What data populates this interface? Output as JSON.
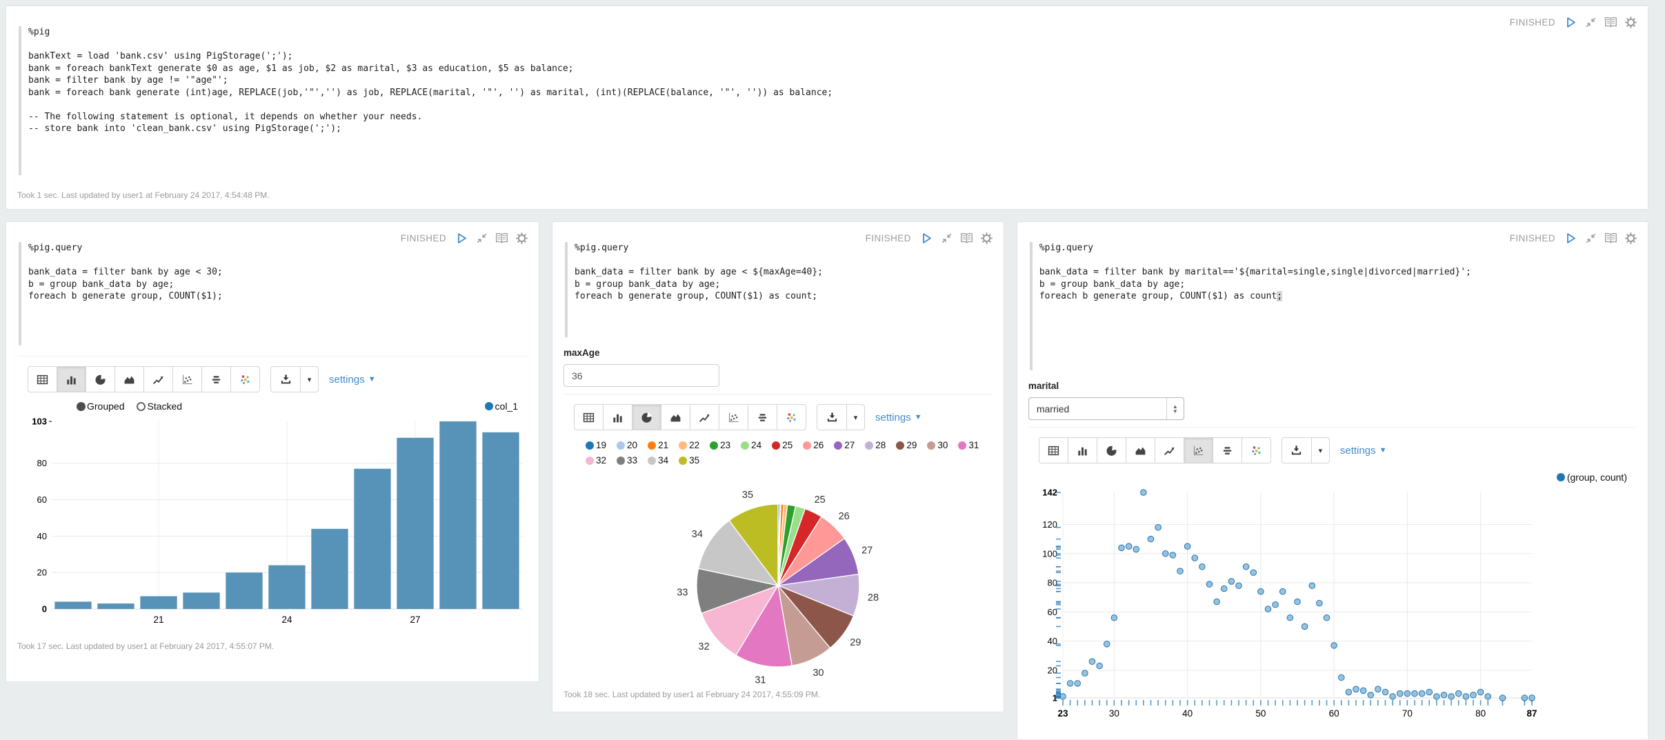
{
  "toolbar": {
    "settings_label": "settings",
    "viz_types": [
      "table",
      "bar-chart",
      "pie-chart",
      "area-chart",
      "line-chart",
      "scatter-chart",
      "stacked-chart",
      "bubble-chart"
    ],
    "header_icons": [
      "play-icon",
      "compress-icon",
      "book-icon",
      "gear-icon"
    ],
    "extra_icons": [
      "download-icon",
      "caret-down-icon"
    ]
  },
  "paragraphs": [
    {
      "status": "FINISHED",
      "code": "%pig\n\nbankText = load 'bank.csv' using PigStorage(';');\nbank = foreach bankText generate $0 as age, $1 as job, $2 as marital, $3 as education, $5 as balance;\nbank = filter bank by age != '\"age\"';\nbank = foreach bank generate (int)age, REPLACE(job,'\"','') as job, REPLACE(marital, '\"', '') as marital, (int)(REPLACE(balance, '\"', '')) as balance;\n\n-- The following statement is optional, it depends on whether your needs.\n-- store bank into 'clean_bank.csv' using PigStorage(';');",
      "footer": "Took 1 sec. Last updated by user1 at February 24 2017, 4:54:48 PM."
    },
    {
      "status": "FINISHED",
      "code": "%pig.query\n\nbank_data = filter bank by age < 30;\nb = group bank_data by age;\nforeach b generate group, COUNT($1);",
      "footer": "Took 17 sec. Last updated by user1 at February 24 2017, 4:55:07 PM."
    },
    {
      "status": "FINISHED",
      "code": "%pig.query\n\nbank_data = filter bank by age < ${maxAge=40};\nb = group bank_data by age;\nforeach b generate group, COUNT($1) as count;",
      "form": {
        "label": "maxAge",
        "value": "36"
      },
      "footer": "Took 18 sec. Last updated by user1 at February 24 2017, 4:55:09 PM."
    },
    {
      "status": "FINISHED",
      "code": "%pig.query\n\nbank_data = filter bank by marital=='${marital=single,single|divorced|married}';\nb = group bank_data by age;\nforeach b generate group, COUNT($1) as count",
      "code_cursor_char": ";",
      "form": {
        "label": "marital",
        "value": "married"
      }
    }
  ],
  "chart_data": [
    {
      "type": "bar",
      "series_label": "col_1",
      "controls": [
        "Grouped",
        "Stacked"
      ],
      "active_control": "Grouped",
      "categories": [
        19,
        20,
        21,
        22,
        23,
        24,
        25,
        26,
        27,
        28,
        29
      ],
      "values": [
        4,
        3,
        7,
        9,
        20,
        24,
        44,
        77,
        94,
        103,
        97
      ],
      "xticks_shown": [
        21,
        24,
        27
      ],
      "yticks": [
        0,
        20,
        40,
        60,
        80
      ],
      "ymax": 103,
      "ylim": [
        0,
        103
      ],
      "bar_color": "#5792b8",
      "legend_color": "#1f77b4",
      "grid": true
    },
    {
      "type": "pie",
      "labels": [
        19,
        20,
        21,
        22,
        23,
        24,
        25,
        26,
        27,
        28,
        29,
        30,
        31,
        32,
        33,
        34,
        35
      ],
      "values": [
        4,
        3,
        7,
        9,
        20,
        24,
        44,
        77,
        94,
        103,
        97,
        103,
        141,
        134,
        110,
        141,
        127
      ],
      "colors": [
        "#1f77b4",
        "#aec7e8",
        "#ff7f0e",
        "#ffbb78",
        "#2ca02c",
        "#98df8a",
        "#d62728",
        "#ff9896",
        "#9467bd",
        "#c5b0d5",
        "#8c564b",
        "#c49c94",
        "#e377c2",
        "#f7b6d2",
        "#7f7f7f",
        "#c7c7c7",
        "#bcbd22"
      ],
      "label_min_value": 40,
      "labeled_slices": [
        25,
        26,
        27,
        28,
        29,
        30,
        31,
        32,
        33,
        34,
        35
      ]
    },
    {
      "type": "scatter",
      "legend": "(group, count)",
      "point_color": "#1f77b4",
      "xlim": [
        23,
        87
      ],
      "ylim": [
        1,
        142
      ],
      "xticks": [
        30,
        40,
        50,
        60,
        70,
        80
      ],
      "yticks": [
        20,
        40,
        60,
        80,
        100,
        120
      ],
      "x_minmax_labels": [
        "23",
        "87"
      ],
      "y_minmax_labels": [
        "1",
        "142"
      ],
      "grid": true,
      "points": [
        [
          23,
          2
        ],
        [
          24,
          11
        ],
        [
          25,
          11
        ],
        [
          26,
          18
        ],
        [
          27,
          26
        ],
        [
          28,
          23
        ],
        [
          29,
          38
        ],
        [
          30,
          56
        ],
        [
          31,
          104
        ],
        [
          32,
          105
        ],
        [
          33,
          103
        ],
        [
          34,
          142
        ],
        [
          35,
          110
        ],
        [
          36,
          118
        ],
        [
          37,
          100
        ],
        [
          38,
          99
        ],
        [
          39,
          88
        ],
        [
          40,
          105
        ],
        [
          41,
          97
        ],
        [
          42,
          91
        ],
        [
          43,
          79
        ],
        [
          44,
          67
        ],
        [
          45,
          76
        ],
        [
          46,
          81
        ],
        [
          47,
          78
        ],
        [
          48,
          91
        ],
        [
          49,
          87
        ],
        [
          50,
          74
        ],
        [
          51,
          62
        ],
        [
          52,
          65
        ],
        [
          53,
          74
        ],
        [
          54,
          56
        ],
        [
          55,
          67
        ],
        [
          56,
          50
        ],
        [
          57,
          78
        ],
        [
          58,
          66
        ],
        [
          59,
          56
        ],
        [
          60,
          37
        ],
        [
          61,
          15
        ],
        [
          62,
          5
        ],
        [
          63,
          7
        ],
        [
          64,
          6
        ],
        [
          65,
          3
        ],
        [
          66,
          7
        ],
        [
          67,
          5
        ],
        [
          68,
          2
        ],
        [
          69,
          4
        ],
        [
          70,
          4
        ],
        [
          71,
          4
        ],
        [
          72,
          4
        ],
        [
          73,
          5
        ],
        [
          74,
          2
        ],
        [
          75,
          3
        ],
        [
          76,
          2
        ],
        [
          77,
          4
        ],
        [
          78,
          2
        ],
        [
          79,
          3
        ],
        [
          80,
          5
        ],
        [
          81,
          2
        ],
        [
          83,
          1
        ],
        [
          86,
          1
        ],
        [
          87,
          1
        ]
      ]
    }
  ]
}
